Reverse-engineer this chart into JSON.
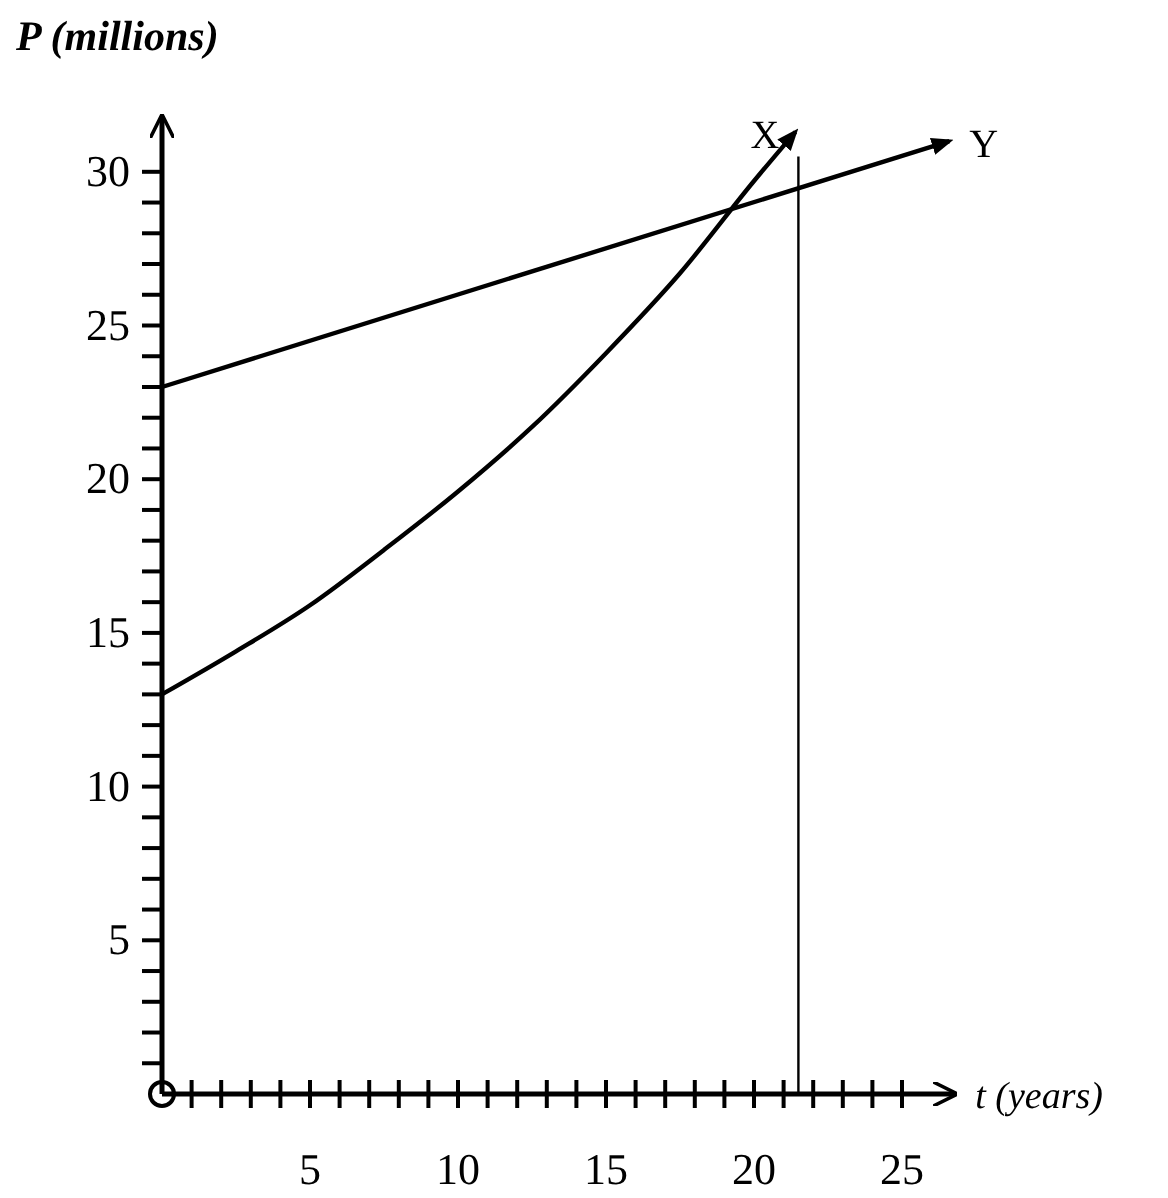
{
  "chart_data": {
    "type": "line",
    "xlabel": "t (years)",
    "ylabel": "P (millions)",
    "xlim": [
      0,
      26.8
    ],
    "ylim": [
      0,
      31.8
    ],
    "xticks": [
      {
        "value": 1,
        "label": null
      },
      {
        "value": 2,
        "label": null
      },
      {
        "value": 3,
        "label": null
      },
      {
        "value": 4,
        "label": null
      },
      5,
      {
        "value": 6,
        "label": null
      },
      {
        "value": 7,
        "label": null
      },
      {
        "value": 8,
        "label": null
      },
      {
        "value": 9,
        "label": null
      },
      10,
      {
        "value": 11,
        "label": null
      },
      {
        "value": 12,
        "label": null
      },
      {
        "value": 13,
        "label": null
      },
      {
        "value": 14,
        "label": null
      },
      15,
      {
        "value": 16,
        "label": null
      },
      {
        "value": 17,
        "label": null
      },
      {
        "value": 18,
        "label": null
      },
      {
        "value": 19,
        "label": null
      },
      20,
      {
        "value": 21,
        "label": null
      },
      {
        "value": 22,
        "label": null
      },
      {
        "value": 23,
        "label": null
      },
      {
        "value": 24,
        "label": null
      },
      25
    ],
    "yticks": [
      {
        "value": 1,
        "label": null
      },
      {
        "value": 2,
        "label": null
      },
      {
        "value": 3,
        "label": null
      },
      {
        "value": 4,
        "label": null
      },
      5,
      {
        "value": 6,
        "label": null
      },
      {
        "value": 7,
        "label": null
      },
      {
        "value": 8,
        "label": null
      },
      {
        "value": 9,
        "label": null
      },
      10,
      {
        "value": 11,
        "label": null
      },
      {
        "value": 12,
        "label": null
      },
      {
        "value": 13,
        "label": null
      },
      {
        "value": 14,
        "label": null
      },
      15,
      {
        "value": 16,
        "label": null
      },
      {
        "value": 17,
        "label": null
      },
      {
        "value": 18,
        "label": null
      },
      {
        "value": 19,
        "label": null
      },
      20,
      {
        "value": 21,
        "label": null
      },
      {
        "value": 22,
        "label": null
      },
      {
        "value": 23,
        "label": null
      },
      {
        "value": 24,
        "label": null
      },
      25,
      {
        "value": 26,
        "label": null
      },
      {
        "value": 27,
        "label": null
      },
      {
        "value": 28,
        "label": null
      },
      {
        "value": 29,
        "label": null
      },
      30
    ],
    "grid": false,
    "legend": false,
    "marker": "none",
    "line_style": "solid",
    "series": [
      {
        "name": "X",
        "color": "#000000",
        "x": [
          0,
          2.5,
          5,
          7.5,
          10,
          12.5,
          15,
          17.5,
          20,
          21.4
        ],
        "values": [
          13,
          14.4,
          15.9,
          17.7,
          19.6,
          21.7,
          24.1,
          26.7,
          29.7,
          31.3
        ]
      },
      {
        "name": "Y",
        "color": "#000000",
        "x": [
          0,
          26.6
        ],
        "values": [
          23,
          31
        ]
      }
    ],
    "ref_lines": [
      {
        "axis": "x",
        "value": 21.5,
        "color": "#000000"
      }
    ]
  }
}
